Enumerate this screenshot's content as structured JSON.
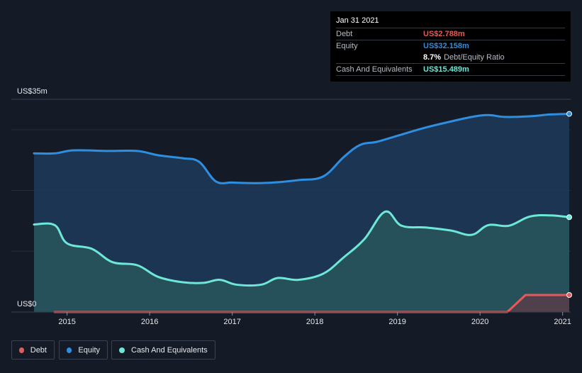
{
  "tooltip": {
    "date": "Jan 31 2021",
    "rows": [
      {
        "label": "Debt",
        "value": "US$2.788m",
        "color": "#e65a5a"
      },
      {
        "label": "Equity",
        "value": "US$32.158m",
        "color": "#2e8ee0"
      },
      {
        "ratio_value": "8.7%",
        "ratio_label": "Debt/Equity Ratio"
      },
      {
        "label": "Cash And Equivalents",
        "value": "US$15.489m",
        "color": "#6ee8d6"
      }
    ]
  },
  "legend": [
    {
      "label": "Debt",
      "color": "#e65a5a"
    },
    {
      "label": "Equity",
      "color": "#2e8ee0"
    },
    {
      "label": "Cash And Equivalents",
      "color": "#6ee8d6"
    }
  ],
  "chart_data": {
    "type": "area",
    "y_top_label": "US$35m",
    "y_bottom_label": "US$0",
    "ylim": [
      0,
      35
    ],
    "xlim": [
      2014.6,
      2021.08
    ],
    "x_ticks": [
      "2015",
      "2016",
      "2017",
      "2018",
      "2019",
      "2020",
      "2021"
    ],
    "x_tick_values": [
      2015,
      2016,
      2017,
      2018,
      2019,
      2020,
      2021
    ],
    "grid": true,
    "series": [
      {
        "name": "Equity",
        "color": "#2e8ee0",
        "points": [
          [
            2014.6,
            26.1
          ],
          [
            2014.85,
            26.1
          ],
          [
            2015.08,
            26.6
          ],
          [
            2015.5,
            26.5
          ],
          [
            2015.85,
            26.5
          ],
          [
            2016.1,
            25.8
          ],
          [
            2016.4,
            25.3
          ],
          [
            2016.6,
            24.7
          ],
          [
            2016.8,
            21.5
          ],
          [
            2017.0,
            21.3
          ],
          [
            2017.25,
            21.2
          ],
          [
            2017.5,
            21.3
          ],
          [
            2017.8,
            21.7
          ],
          [
            2018.1,
            22.3
          ],
          [
            2018.35,
            25.5
          ],
          [
            2018.55,
            27.5
          ],
          [
            2018.75,
            28.0
          ],
          [
            2019.0,
            29.0
          ],
          [
            2019.3,
            30.2
          ],
          [
            2019.6,
            31.2
          ],
          [
            2019.9,
            32.1
          ],
          [
            2020.1,
            32.4
          ],
          [
            2020.3,
            32.1
          ],
          [
            2020.6,
            32.2
          ],
          [
            2020.85,
            32.5
          ],
          [
            2021.08,
            32.6
          ]
        ]
      },
      {
        "name": "Cash And Equivalents",
        "color": "#6ee8d6",
        "points": [
          [
            2014.6,
            14.4
          ],
          [
            2014.85,
            14.3
          ],
          [
            2015.0,
            11.3
          ],
          [
            2015.3,
            10.4
          ],
          [
            2015.55,
            8.2
          ],
          [
            2015.85,
            7.7
          ],
          [
            2016.1,
            5.8
          ],
          [
            2016.4,
            4.9
          ],
          [
            2016.65,
            4.8
          ],
          [
            2016.85,
            5.3
          ],
          [
            2017.05,
            4.5
          ],
          [
            2017.35,
            4.5
          ],
          [
            2017.55,
            5.6
          ],
          [
            2017.8,
            5.3
          ],
          [
            2018.1,
            6.3
          ],
          [
            2018.35,
            9.0
          ],
          [
            2018.6,
            12.0
          ],
          [
            2018.85,
            16.5
          ],
          [
            2019.05,
            14.2
          ],
          [
            2019.35,
            13.9
          ],
          [
            2019.65,
            13.4
          ],
          [
            2019.9,
            12.7
          ],
          [
            2020.1,
            14.3
          ],
          [
            2020.35,
            14.2
          ],
          [
            2020.6,
            15.7
          ],
          [
            2020.85,
            15.9
          ],
          [
            2021.08,
            15.6
          ]
        ]
      },
      {
        "name": "Debt",
        "color": "#e65a5a",
        "points": [
          [
            2014.85,
            0.0
          ],
          [
            2020.33,
            0.0
          ],
          [
            2020.55,
            2.8
          ],
          [
            2021.08,
            2.8
          ]
        ]
      }
    ]
  }
}
